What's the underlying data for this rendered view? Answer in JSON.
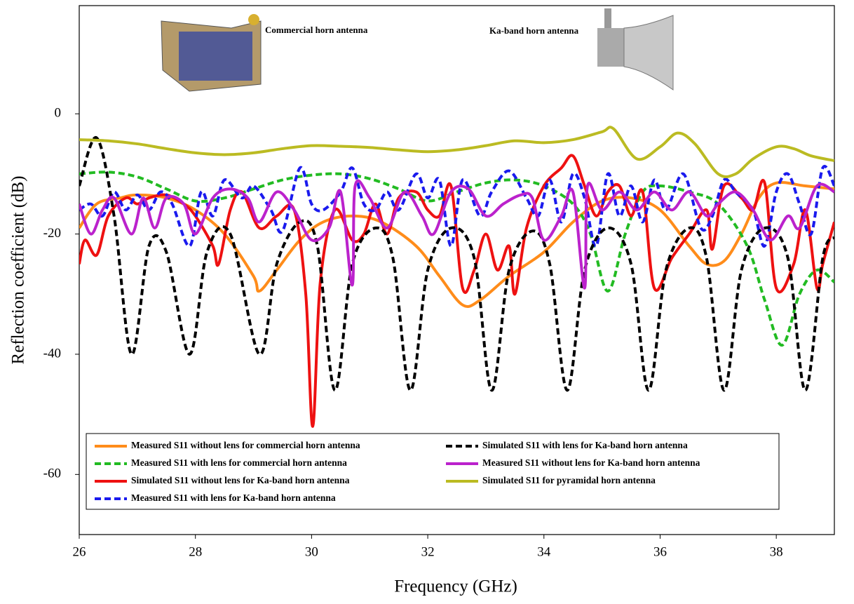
{
  "chart_data": {
    "type": "line",
    "xlabel": "Frequency (GHz)",
    "ylabel": "Reflection coefficient (dB)",
    "annotations": [
      "Commercial horn antenna",
      "Ka-band horn antenna"
    ],
    "xlim": [
      26,
      39
    ],
    "xticks": [
      26,
      28,
      30,
      32,
      34,
      36,
      38
    ],
    "ylim": [
      -70,
      18
    ],
    "yticks": [
      -60,
      -40,
      -20,
      0
    ],
    "legend": "bottom",
    "series": [
      {
        "name": "Measured S11 without lens for commercial horn antenna",
        "color": "#ff8c1a",
        "style": "solid",
        "x": [
          26,
          26.3,
          26.7,
          27,
          27.5,
          28,
          28.5,
          29,
          29.1,
          29.4,
          29.8,
          30.2,
          30.7,
          31.2,
          31.8,
          32.2,
          32.6,
          32.9,
          33.4,
          34,
          34.5,
          35,
          35.5,
          36,
          36.5,
          36.8,
          37.1,
          37.4,
          37.7,
          38,
          38.5,
          39
        ],
        "values": [
          -19,
          -15,
          -14,
          -13.5,
          -14,
          -16,
          -20,
          -27,
          -29.5,
          -26,
          -21,
          -18,
          -17,
          -18,
          -22,
          -27,
          -31.8,
          -31,
          -27,
          -23,
          -18,
          -14.5,
          -14,
          -16,
          -22,
          -25,
          -24.5,
          -20,
          -14,
          -11.5,
          -12,
          -12.5
        ]
      },
      {
        "name": "Measured S11 with lens for commercial horn antenna",
        "color": "#22bb22",
        "style": "dashed",
        "x": [
          26,
          26.5,
          27,
          27.5,
          28,
          28.5,
          29,
          29.5,
          30,
          30.5,
          31,
          31.5,
          32,
          32.5,
          33,
          33.5,
          34,
          34.5,
          34.8,
          35.1,
          35.4,
          35.7,
          36,
          36.5,
          37,
          37.5,
          37.8,
          38.1,
          38.4,
          38.7,
          39
        ],
        "values": [
          -10,
          -9.7,
          -10.5,
          -12.5,
          -14.5,
          -14,
          -12.5,
          -11,
          -10.2,
          -10,
          -10.8,
          -12.5,
          -14.5,
          -13,
          -11.5,
          -11,
          -12,
          -15,
          -20,
          -29.5,
          -20,
          -13,
          -12,
          -13,
          -15,
          -22,
          -31,
          -38.5,
          -30,
          -26,
          -28
        ]
      },
      {
        "name": "Simulated S11 without lens for Ka-band horn antenna",
        "color": "#ee1111",
        "style": "solid",
        "x": [
          26,
          26.1,
          26.3,
          26.5,
          26.8,
          27,
          27.2,
          27.5,
          27.8,
          28,
          28.3,
          28.4,
          28.6,
          28.8,
          29.1,
          29.4,
          29.7,
          29.9,
          30.02,
          30.15,
          30.4,
          30.7,
          30.9,
          31.1,
          31.3,
          31.5,
          31.8,
          32,
          32.2,
          32.4,
          32.6,
          32.8,
          33,
          33.2,
          33.4,
          33.5,
          33.7,
          34,
          34.3,
          34.5,
          34.7,
          34.9,
          35.1,
          35.3,
          35.5,
          35.7,
          35.9,
          36.2,
          36.5,
          36.8,
          36.9,
          37.1,
          37.4,
          37.6,
          37.8,
          38,
          38.3,
          38.5,
          38.7,
          38.8,
          39
        ],
        "values": [
          -25,
          -21,
          -23.5,
          -17,
          -14,
          -15,
          -14,
          -13.5,
          -15,
          -17,
          -22,
          -25,
          -16,
          -13,
          -19,
          -17,
          -16,
          -30,
          -52,
          -28,
          -16,
          -21,
          -20,
          -15,
          -20,
          -14,
          -13,
          -16,
          -17,
          -12,
          -29,
          -26,
          -20,
          -26,
          -22,
          -30,
          -19,
          -12,
          -9,
          -7,
          -12,
          -17,
          -13,
          -12,
          -17,
          -13,
          -29,
          -24,
          -20,
          -16,
          -22.5,
          -12,
          -14,
          -16,
          -11.5,
          -29,
          -25,
          -16,
          -29,
          -25,
          -18
        ]
      },
      {
        "name": "Measured S11 with lens for Ka-band horn antenna",
        "color": "#1a1aee",
        "style": "dashed",
        "x": [
          26,
          26.2,
          26.4,
          26.6,
          26.8,
          27,
          27.2,
          27.4,
          27.6,
          27.9,
          28.1,
          28.3,
          28.5,
          28.8,
          29,
          29.3,
          29.5,
          29.8,
          30,
          30.2,
          30.5,
          30.7,
          30.9,
          31.1,
          31.3,
          31.5,
          31.8,
          32,
          32.2,
          32.4,
          32.6,
          32.9,
          33.1,
          33.4,
          33.7,
          33.9,
          34.1,
          34.3,
          34.5,
          34.7,
          34.9,
          35.1,
          35.3,
          35.5,
          35.7,
          35.9,
          36.1,
          36.4,
          36.7,
          36.9,
          37.1,
          37.3,
          37.6,
          37.8,
          38,
          38.2,
          38.4,
          38.6,
          38.8,
          39
        ],
        "values": [
          -16,
          -15,
          -17,
          -13,
          -16,
          -13.5,
          -16,
          -13,
          -15,
          -22,
          -13,
          -17,
          -11,
          -14,
          -12,
          -16,
          -19.5,
          -9,
          -15,
          -16,
          -13,
          -9,
          -15,
          -16,
          -13,
          -16,
          -10,
          -14,
          -11,
          -22,
          -11,
          -17,
          -13,
          -9.5,
          -14,
          -17,
          -11,
          -18,
          -10,
          -14,
          -22,
          -10,
          -17,
          -12,
          -18,
          -11,
          -16,
          -10,
          -19,
          -17,
          -11,
          -13,
          -16,
          -22,
          -13,
          -10,
          -15,
          -20,
          -9,
          -12
        ]
      },
      {
        "name": "Simulated S11 with lens for Ka-band horn antenna",
        "color": "#000000",
        "style": "dashed",
        "x": [
          26,
          26.3,
          26.6,
          26.9,
          27.2,
          27.5,
          27.9,
          28.2,
          28.6,
          29.1,
          29.4,
          29.8,
          30.1,
          30.4,
          30.7,
          31.1,
          31.4,
          31.7,
          32,
          32.4,
          32.8,
          33.1,
          33.4,
          33.8,
          34.1,
          34.4,
          34.7,
          35.1,
          35.5,
          35.8,
          36.1,
          36.5,
          36.8,
          37.1,
          37.4,
          37.8,
          38.2,
          38.5,
          38.8,
          39
        ],
        "values": [
          -12,
          -4,
          -17,
          -40,
          -22,
          -23,
          -40,
          -23,
          -20,
          -40,
          -25,
          -18,
          -22,
          -46,
          -25,
          -19,
          -24,
          -46,
          -26,
          -19,
          -24,
          -46,
          -26,
          -19.5,
          -25,
          -46,
          -26,
          -19,
          -25,
          -46,
          -26,
          -19,
          -24,
          -46,
          -26,
          -19,
          -24,
          -46,
          -24,
          -20.5
        ]
      },
      {
        "name": "Measured S11 without lens for Ka-band horn antenna",
        "color": "#bb22cc",
        "style": "solid",
        "x": [
          26,
          26.2,
          26.4,
          26.6,
          26.9,
          27.1,
          27.3,
          27.5,
          27.8,
          28,
          28.3,
          28.6,
          28.9,
          29.1,
          29.4,
          29.7,
          30,
          30.3,
          30.5,
          30.7,
          30.75,
          31,
          31.3,
          31.6,
          31.9,
          32.1,
          32.4,
          32.7,
          33,
          33.3,
          33.6,
          33.8,
          34,
          34.3,
          34.5,
          34.7,
          34.75,
          35,
          35.3,
          35.6,
          35.9,
          36.2,
          36.5,
          36.8,
          37,
          37.3,
          37.6,
          37.9,
          38.2,
          38.4,
          38.7,
          39
        ],
        "values": [
          -15,
          -20,
          -16,
          -14,
          -20,
          -14,
          -19,
          -14,
          -15,
          -20,
          -14,
          -12.5,
          -14,
          -18,
          -13,
          -16,
          -21,
          -19,
          -13,
          -28.5,
          -12,
          -14,
          -19,
          -13,
          -17,
          -20,
          -13,
          -12.5,
          -17,
          -15,
          -13.5,
          -14,
          -21,
          -17,
          -13,
          -29,
          -12,
          -16,
          -13,
          -16,
          -13,
          -16,
          -13,
          -17,
          -15,
          -13,
          -16,
          -21,
          -17,
          -19,
          -12,
          -13
        ]
      },
      {
        "name": "Simulated S11 for pyramidal horn antenna",
        "color": "#bbbb22",
        "style": "solid",
        "x": [
          26,
          26.5,
          27,
          27.5,
          28,
          28.5,
          29,
          29.5,
          30,
          30.5,
          31,
          31.5,
          32,
          32.5,
          33,
          33.5,
          34,
          34.5,
          35,
          35.2,
          35.6,
          36,
          36.3,
          36.6,
          37,
          37.3,
          37.6,
          38,
          38.3,
          38.6,
          39
        ],
        "values": [
          -4.3,
          -4.5,
          -5,
          -5.8,
          -6.5,
          -6.8,
          -6.5,
          -5.8,
          -5.3,
          -5.4,
          -5.6,
          -6,
          -6.3,
          -6,
          -5.3,
          -4.5,
          -4.8,
          -4.3,
          -3,
          -2.5,
          -7.5,
          -5.5,
          -3.2,
          -5,
          -10,
          -10,
          -7.5,
          -5.5,
          -5.8,
          -7,
          -7.8
        ]
      }
    ]
  }
}
